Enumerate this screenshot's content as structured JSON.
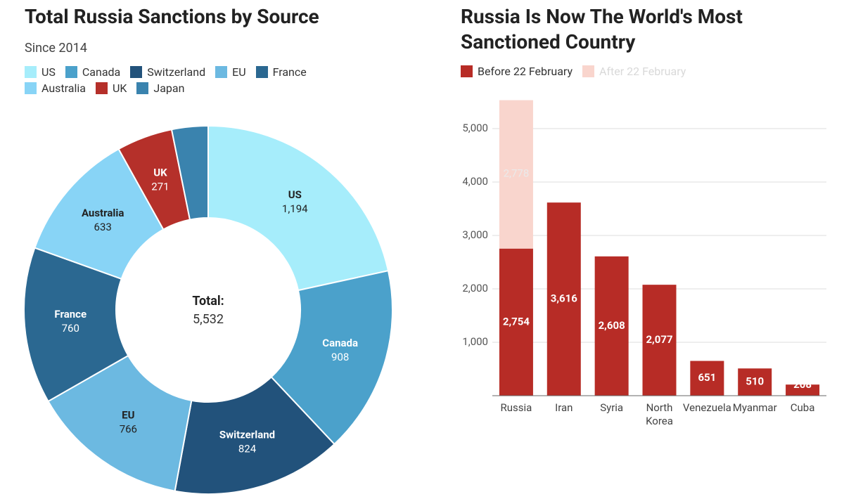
{
  "chart_data": [
    {
      "type": "pie",
      "title": "Total Russia Sanctions by Source",
      "subtitle": "Since 2014",
      "categories": [
        "US",
        "Canada",
        "Switzerland",
        "EU",
        "France",
        "Australia",
        "UK",
        "Japan"
      ],
      "values": [
        1194,
        908,
        824,
        766,
        760,
        633,
        271,
        176
      ],
      "value_labels": [
        "1,194",
        "908",
        "824",
        "766",
        "760",
        "633",
        "271",
        null
      ],
      "colors": [
        "#a6edfb",
        "#4ba1cb",
        "#22527b",
        "#6cb9e1",
        "#2b6891",
        "#88d4f6",
        "#b5302a",
        "#3a83ae"
      ],
      "center_text": [
        "Total:",
        "5,532"
      ]
    },
    {
      "type": "bar",
      "title": "Russia Is Now The World's Most Sanctioned Country",
      "categories": [
        "Russia",
        "Iran",
        "Syria",
        "North Korea",
        "Venezuela",
        "Myanmar",
        "Cuba"
      ],
      "series": [
        {
          "name": "Before 22 February",
          "color": "#b72c26",
          "values": [
            2754,
            3616,
            2608,
            2077,
            651,
            510,
            208
          ],
          "value_labels": [
            "2,754",
            "3,616",
            "2,608",
            "2,077",
            "651",
            "510",
            "208"
          ]
        },
        {
          "name": "After 22 February",
          "color": "#f9d5cd",
          "values": [
            2778,
            null,
            null,
            null,
            null,
            null,
            null
          ],
          "value_labels": [
            "2,778",
            null,
            null,
            null,
            null,
            null,
            null
          ]
        }
      ],
      "stacked": true,
      "ylim": [
        0,
        5600
      ],
      "yticks": [
        {
          "value": 1000,
          "label": "1,000"
        },
        {
          "value": 2000,
          "label": "2,000"
        },
        {
          "value": 3000,
          "label": "3,000"
        },
        {
          "value": 4000,
          "label": "4,000"
        },
        {
          "value": 5000,
          "label": "5,000"
        }
      ],
      "grid": true
    }
  ]
}
